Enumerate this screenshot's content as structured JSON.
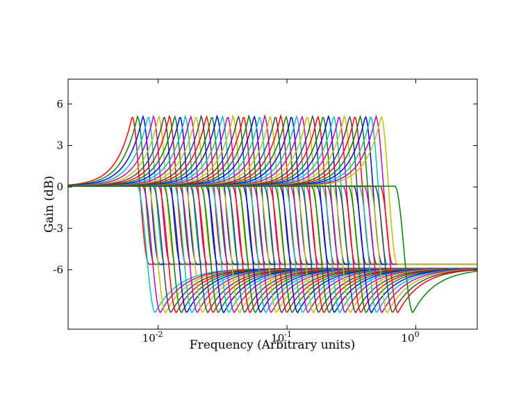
{
  "chart_data": {
    "type": "line",
    "title": "",
    "xlabel": "Frequency (Arbitrary units)",
    "ylabel": "Gain (dB)",
    "x_scale": "log",
    "xlim": [
      0.002,
      3
    ],
    "ylim": [
      -10.3,
      7.8
    ],
    "grid": false,
    "legend": "none",
    "x_ticks": [
      {
        "value": 0.01,
        "base": "10",
        "exponent": "-2"
      },
      {
        "value": 0.1,
        "base": "10",
        "exponent": "-1"
      },
      {
        "value": 1,
        "base": "10",
        "exponent": "0"
      }
    ],
    "y_ticks": [
      {
        "value": 6,
        "label": "6"
      },
      {
        "value": 3,
        "label": "3"
      },
      {
        "value": 0,
        "label": "0"
      },
      {
        "value": -3,
        "label": "-3"
      },
      {
        "value": -6,
        "label": "-6"
      }
    ],
    "series_colors": [
      "#ff0000",
      "#008000",
      "#0000ff",
      "#00bfbf",
      "#bf00bf",
      "#bfbf00",
      "#404040"
    ],
    "boost_family": {
      "count": 48,
      "peak_gain_db": 5.1,
      "peak_frequency_first": 0.0063,
      "peak_frequency_last": 0.54,
      "final_cutoff_frequency": 0.72
    },
    "cut_family": {
      "count": 48,
      "trough_gain_db": -9.1,
      "trough_frequency_first": 0.0095,
      "trough_frequency_last": 0.8,
      "high_frequency_gain_db": -5.9,
      "final_trough_frequency": 0.95
    }
  }
}
